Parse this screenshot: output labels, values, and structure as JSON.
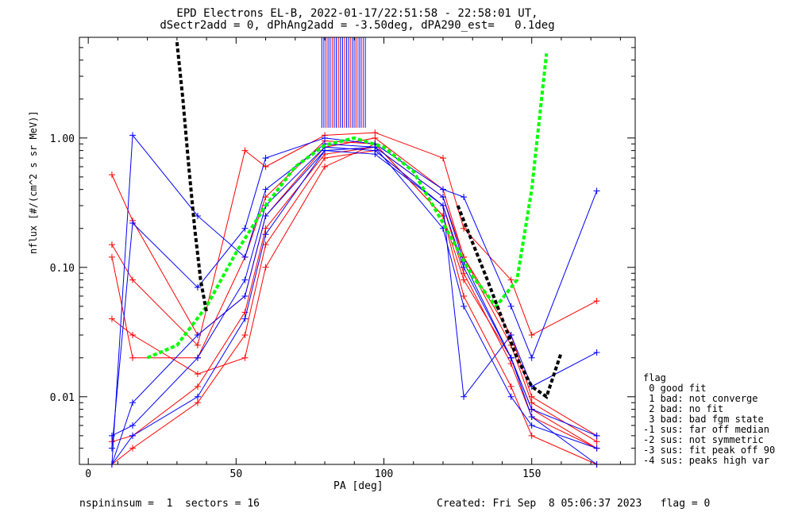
{
  "title_line1": "EPD Electrons EL-B, 2022-01-17/22:51:58 - 22:58:01 UT,",
  "title_line2": "dSectr2add = 0, dPhAng2add = -3.50deg, dPA290_est=   0.1deg",
  "footer_left": "nspininsum =  1  sectors = 16",
  "footer_right": "Created: Fri Sep  8 05:06:37 2023   flag = 0",
  "legend": {
    "title": "flag",
    "items": [
      " 0 good fit",
      " 1 bad: not converge",
      " 2 bad: no fit",
      " 3 bad: bad fgm state",
      "-1 sus: far off median",
      "-2 sus: not symmetric",
      "-3 sus: fit peak off 90",
      "-4 sus: peaks high var"
    ]
  },
  "colors": {
    "red": "#ff0000",
    "blue": "#0000ff",
    "green": "#00ff00",
    "black": "#000000"
  },
  "chart_data": {
    "type": "line",
    "xlabel": "PA [deg]",
    "ylabel": "nflux [#/(cm^2 s sr MeV)]",
    "xlim": [
      -3,
      185
    ],
    "ylim": [
      0.003,
      6
    ],
    "yscale": "log",
    "xticks": [
      0,
      50,
      100,
      150
    ],
    "yticks": [
      0.01,
      0.1,
      1.0
    ],
    "ytick_labels": [
      "0.01",
      "0.10",
      "1.00"
    ],
    "sector_pitch_angles": [
      8,
      15,
      37,
      53,
      60,
      80,
      97,
      120,
      127,
      143,
      150,
      172
    ],
    "series": [
      {
        "color": "red",
        "y": [
          0.0045,
          0.005,
          0.012,
          0.045,
          0.2,
          0.75,
          0.85,
          0.35,
          0.12,
          0.025,
          0.009,
          0.0045
        ]
      },
      {
        "color": "red",
        "y": [
          0.12,
          0.02,
          0.02,
          0.12,
          0.35,
          0.95,
          0.9,
          0.25,
          0.08,
          0.02,
          0.008,
          0.004
        ]
      },
      {
        "color": "red",
        "y": [
          0.52,
          0.23,
          0.03,
          0.06,
          0.25,
          0.85,
          1.0,
          0.4,
          0.12,
          0.03,
          0.01,
          0.005
        ]
      },
      {
        "color": "red",
        "y": [
          0.003,
          0.004,
          0.009,
          0.03,
          0.15,
          0.7,
          0.8,
          0.3,
          0.09,
          0.018,
          0.007,
          0.004
        ]
      },
      {
        "color": "red",
        "y": [
          0.15,
          0.08,
          0.025,
          0.8,
          0.6,
          1.05,
          1.1,
          0.7,
          0.2,
          0.08,
          0.03,
          0.055
        ]
      },
      {
        "color": "red",
        "y": [
          0.04,
          0.03,
          0.015,
          0.02,
          0.1,
          0.6,
          0.9,
          0.25,
          0.06,
          0.012,
          0.005,
          0.003
        ]
      },
      {
        "color": "blue",
        "y": [
          0.005,
          0.006,
          0.02,
          0.08,
          0.3,
          0.85,
          0.8,
          0.3,
          0.1,
          0.02,
          0.008,
          0.005
        ]
      },
      {
        "color": "blue",
        "y": [
          0.003,
          1.05,
          0.25,
          0.12,
          0.4,
          0.9,
          0.85,
          0.2,
          0.05,
          0.01,
          0.006,
          0.004
        ]
      },
      {
        "color": "blue",
        "y": [
          0.004,
          0.22,
          0.07,
          0.2,
          0.7,
          1.0,
          0.9,
          0.4,
          0.35,
          0.05,
          0.02,
          0.39
        ]
      },
      {
        "color": "blue",
        "y": [
          0.003,
          0.009,
          0.03,
          0.06,
          0.25,
          0.8,
          0.75,
          0.3,
          0.01,
          0.03,
          0.012,
          0.022
        ]
      },
      {
        "color": "blue",
        "y": [
          0.003,
          0.005,
          0.01,
          0.04,
          0.18,
          0.8,
          0.85,
          0.35,
          0.11,
          0.02,
          0.007,
          0.003
        ]
      }
    ],
    "overflow_bars": {
      "x_range": [
        79,
        94
      ],
      "y_from": 1.2
    },
    "fit_curves": [
      {
        "name": "",
        "color": "green",
        "x": [
          20,
          30,
          40,
          50,
          60,
          70,
          80,
          90,
          100,
          110,
          120,
          130,
          138,
          145,
          150,
          155
        ],
        "y": [
          0.02,
          0.025,
          0.05,
          0.13,
          0.3,
          0.6,
          0.88,
          1.0,
          0.85,
          0.55,
          0.22,
          0.085,
          0.05,
          0.08,
          0.4,
          4.5
        ]
      },
      {
        "name": "",
        "color": "black",
        "x": [
          30,
          32,
          34,
          36,
          38,
          40
        ],
        "y": [
          5.5,
          2.0,
          0.6,
          0.2,
          0.08,
          0.045
        ]
      },
      {
        "name": "",
        "color": "black",
        "x": [
          125,
          135,
          145,
          150,
          155,
          160
        ],
        "y": [
          0.3,
          0.08,
          0.02,
          0.012,
          0.01,
          0.022
        ]
      }
    ]
  }
}
